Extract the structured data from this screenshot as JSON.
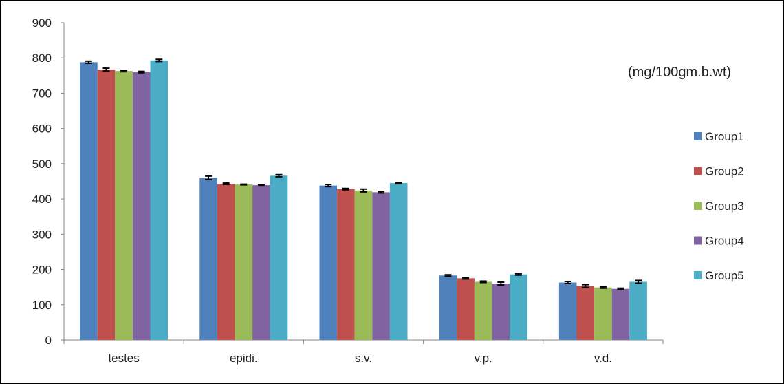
{
  "chart_data": {
    "type": "bar",
    "title": "",
    "xlabel": "",
    "ylabel": "",
    "annotation": "(mg/100gm.b.wt)",
    "categories": [
      "testes",
      "epidi.",
      "s.v.",
      "v.p.",
      "v.d."
    ],
    "ylim": [
      0,
      900
    ],
    "yticks": [
      0,
      100,
      200,
      300,
      400,
      500,
      600,
      700,
      800,
      900
    ],
    "grid": false,
    "legend_position": "right",
    "error_bars": true,
    "series": [
      {
        "name": "Group1",
        "color": "#4F81BD",
        "values": [
          788,
          460,
          438,
          183,
          163
        ],
        "errors": [
          3,
          5,
          3,
          2,
          3
        ]
      },
      {
        "name": "Group2",
        "color": "#C0504D",
        "values": [
          767,
          443,
          428,
          175,
          153
        ],
        "errors": [
          4,
          2,
          2,
          2,
          4
        ]
      },
      {
        "name": "Group3",
        "color": "#9BBB59",
        "values": [
          763,
          441,
          424,
          165,
          149
        ],
        "errors": [
          2,
          1,
          4,
          2,
          2
        ]
      },
      {
        "name": "Group4",
        "color": "#8064A2",
        "values": [
          760,
          439,
          419,
          160,
          145
        ],
        "errors": [
          2,
          2,
          2,
          4,
          2
        ]
      },
      {
        "name": "Group5",
        "color": "#4BACC6",
        "values": [
          793,
          466,
          445,
          186,
          165
        ],
        "errors": [
          3,
          3,
          2,
          2,
          4
        ]
      }
    ]
  }
}
